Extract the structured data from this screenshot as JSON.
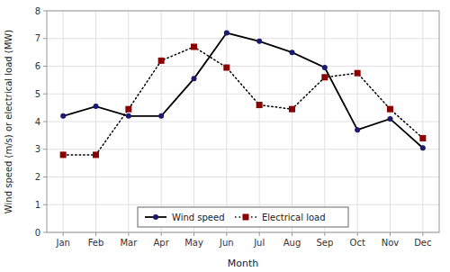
{
  "chart_data": {
    "type": "line",
    "categories": [
      "Jan",
      "Feb",
      "Mar",
      "Apr",
      "May",
      "Jun",
      "Jul",
      "Aug",
      "Sep",
      "Oct",
      "Nov",
      "Dec"
    ],
    "series": [
      {
        "name": "Wind speed",
        "color": "#1a1a6e",
        "marker": "circle",
        "line_style": "solid",
        "values": [
          4.2,
          4.55,
          4.2,
          4.2,
          5.55,
          7.2,
          6.9,
          6.5,
          5.95,
          3.7,
          4.1,
          3.05
        ]
      },
      {
        "name": "Electrical load",
        "color": "#8B0000",
        "marker": "square",
        "line_style": "dotted",
        "values": [
          2.8,
          2.8,
          4.45,
          6.2,
          6.7,
          5.95,
          4.6,
          4.45,
          5.6,
          5.75,
          4.45,
          3.4
        ]
      }
    ],
    "xlabel": "Month",
    "ylabel": "Wind speed (m/s) or electrical load (MW)",
    "ylim": [
      0,
      8
    ],
    "yticks": [
      0,
      1,
      2,
      3,
      4,
      5,
      6,
      7,
      8
    ],
    "grid": true,
    "legend": "lower center"
  }
}
